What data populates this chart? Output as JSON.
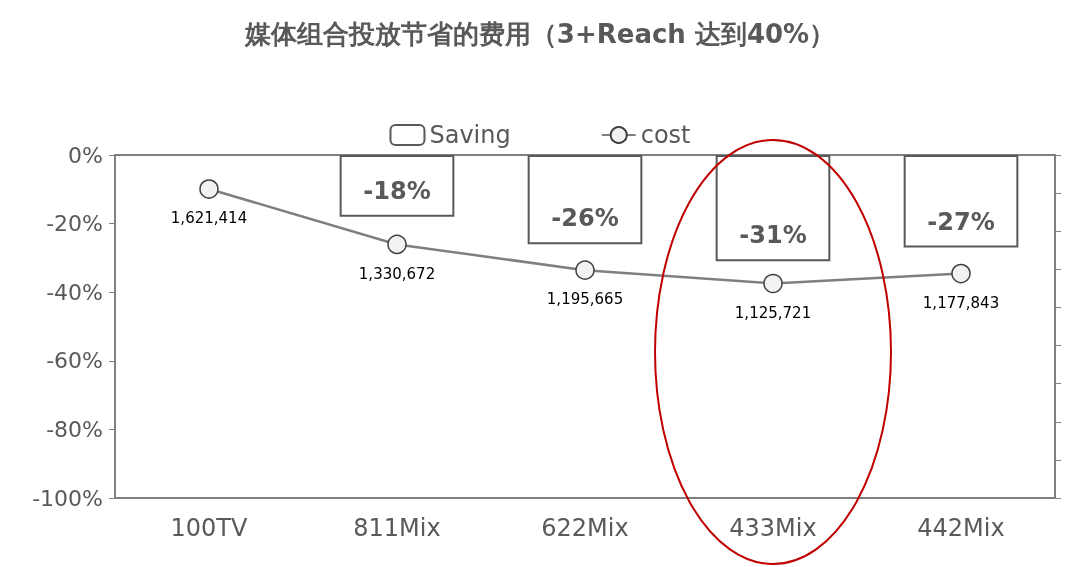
{
  "chart_data": {
    "type": "bar",
    "title": "媒体组合投放节省的费用（3+Reach 达到40%）",
    "categories": [
      "100TV",
      "811Mix",
      "622Mix",
      "433Mix",
      "442Mix"
    ],
    "series": [
      {
        "name": "Saving",
        "color": "#ffffff",
        "values": [
          null,
          -18,
          -26,
          -31,
          -27
        ],
        "value_labels": [
          null,
          "-18%",
          "-26%",
          "-31%",
          "-27%"
        ]
      },
      {
        "name": "cost",
        "type": "line",
        "axis": "y2",
        "color": "#7f7f7f",
        "values": [
          1621414,
          1330672,
          1195665,
          1125721,
          1177843
        ],
        "value_labels": [
          "1,621,414",
          "1,330,672",
          "1,195,665",
          "1,125,721",
          "1,177,843"
        ]
      }
    ],
    "ylim": [
      -100,
      0
    ],
    "yticks": [
      {
        "value": -100,
        "label": "-100%"
      },
      {
        "value": -80,
        "label": "-80%"
      },
      {
        "value": -60,
        "label": "-60%"
      },
      {
        "value": -40,
        "label": "-40%"
      },
      {
        "value": -20,
        "label": "-20%"
      },
      {
        "value": 0,
        "label": "0%"
      }
    ],
    "legend": "top",
    "marker": "circle",
    "grid": false
  }
}
